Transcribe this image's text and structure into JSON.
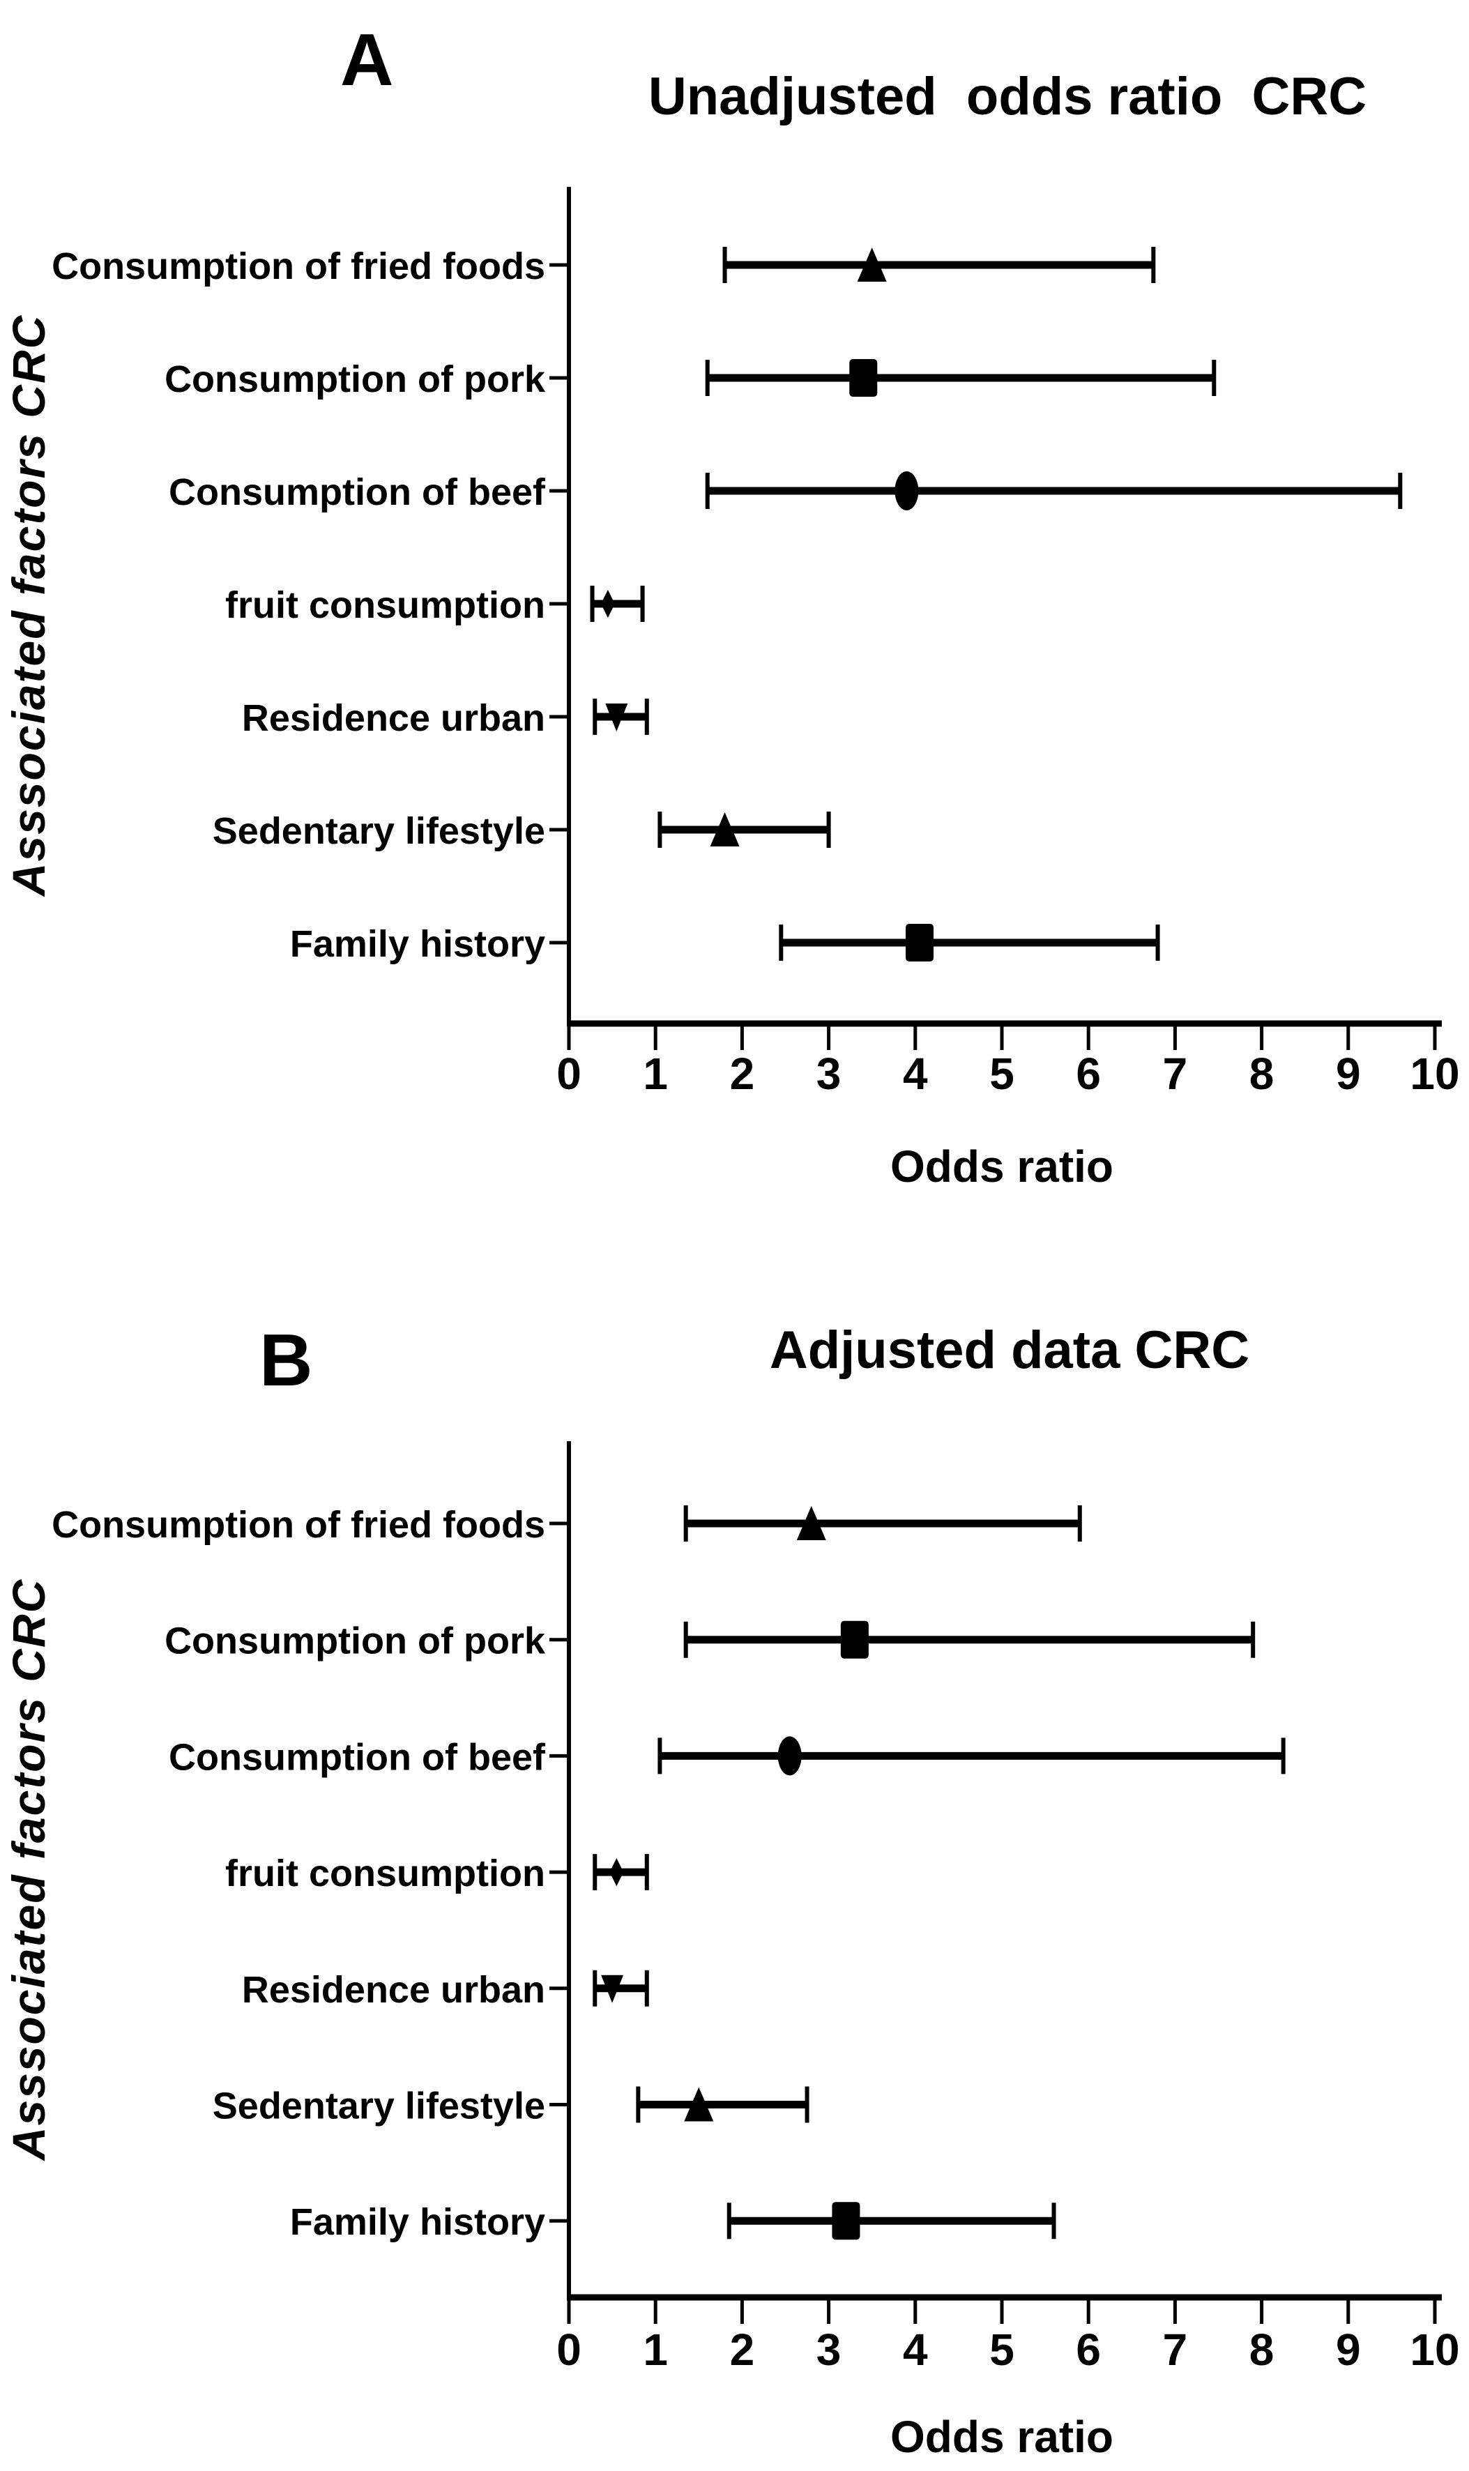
{
  "figure": {
    "description": "Two-panel forest plot of odds ratios for factors associated with colorectal cancer (CRC)",
    "background_color": "#ffffff",
    "ink_color": "#000000"
  },
  "chart_data": [
    {
      "type": "scatter",
      "subtype": "forest-plot",
      "panel_label": "A",
      "title": "Unadjusted  odds ratio  CRC",
      "xlabel": "Odds ratio",
      "ylabel": "Asssociated factors CRC",
      "xlim": [
        0,
        10
      ],
      "xticks": [
        0,
        1,
        2,
        3,
        4,
        5,
        6,
        7,
        8,
        9,
        10
      ],
      "grid": false,
      "legend_position": "none",
      "categories": [
        "Consumption of fried foods",
        "Consumption of pork",
        "Consumption of beef",
        "fruit consumption",
        "Residence urban",
        "Sedentary lifestyle",
        "Family history"
      ],
      "rows": [
        {
          "category": "Consumption of fried foods",
          "marker": "triangle-up",
          "odds_ratio": 3.5,
          "ci_low": 1.8,
          "ci_high": 6.75
        },
        {
          "category": "Consumption of pork",
          "marker": "square",
          "odds_ratio": 3.4,
          "ci_low": 1.6,
          "ci_high": 7.45
        },
        {
          "category": "Consumption of beef",
          "marker": "circle",
          "odds_ratio": 3.9,
          "ci_low": 1.6,
          "ci_high": 9.6
        },
        {
          "category": "fruit consumption",
          "marker": "diamond",
          "odds_ratio": 0.45,
          "ci_low": 0.27,
          "ci_high": 0.85
        },
        {
          "category": "Residence urban",
          "marker": "triangle-down",
          "odds_ratio": 0.55,
          "ci_low": 0.3,
          "ci_high": 0.9
        },
        {
          "category": "Sedentary lifestyle",
          "marker": "triangle-up",
          "odds_ratio": 1.8,
          "ci_low": 1.05,
          "ci_high": 3.0
        },
        {
          "category": "Family history",
          "marker": "square",
          "odds_ratio": 4.05,
          "ci_low": 2.45,
          "ci_high": 6.8
        }
      ]
    },
    {
      "type": "scatter",
      "subtype": "forest-plot",
      "panel_label": "B",
      "title": "Adjusted data CRC",
      "xlabel": "Odds ratio",
      "ylabel": "Asssociated factors CRC",
      "xlim": [
        0,
        10
      ],
      "xticks": [
        0,
        1,
        2,
        3,
        4,
        5,
        6,
        7,
        8,
        9,
        10
      ],
      "grid": false,
      "legend_position": "none",
      "categories": [
        "Consumption of fried foods",
        "Consumption of pork",
        "Consumption of beef",
        "fruit consumption",
        "Residence urban",
        "Sedentary lifestyle",
        "Family history"
      ],
      "rows": [
        {
          "category": "Consumption of fried foods",
          "marker": "triangle-up",
          "odds_ratio": 2.8,
          "ci_low": 1.35,
          "ci_high": 5.9
        },
        {
          "category": "Consumption of pork",
          "marker": "square",
          "odds_ratio": 3.3,
          "ci_low": 1.35,
          "ci_high": 7.9
        },
        {
          "category": "Consumption of beef",
          "marker": "circle",
          "odds_ratio": 2.55,
          "ci_low": 1.05,
          "ci_high": 8.25
        },
        {
          "category": "fruit consumption",
          "marker": "diamond",
          "odds_ratio": 0.55,
          "ci_low": 0.3,
          "ci_high": 0.9
        },
        {
          "category": "Residence urban",
          "marker": "triangle-down",
          "odds_ratio": 0.5,
          "ci_low": 0.3,
          "ci_high": 0.9
        },
        {
          "category": "Sedentary lifestyle",
          "marker": "triangle-up",
          "odds_ratio": 1.5,
          "ci_low": 0.8,
          "ci_high": 2.75
        },
        {
          "category": "Family history",
          "marker": "square",
          "odds_ratio": 3.2,
          "ci_low": 1.85,
          "ci_high": 5.6
        }
      ]
    }
  ]
}
